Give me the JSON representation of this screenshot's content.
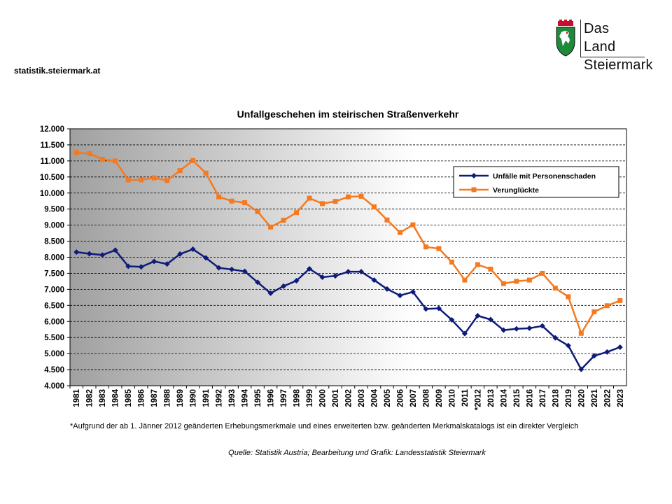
{
  "header": {
    "site": "statistik.steiermark.at",
    "logo_line1": "Das Land",
    "logo_line2": "Steiermark"
  },
  "colors": {
    "series1": "#0d1b7a",
    "series2": "#f47920",
    "plot_left": "#a0a0a0",
    "plot_right": "#ffffff"
  },
  "footnote": "*Aufgrund der ab 1. Jänner 2012 geänderten Erhebungsmerkmale und eines erweiterten bzw. geänderten Merkmalskatalogs ist ein direkter Vergleich",
  "source": "Quelle: Statistik Austria; Bearbeitung und Grafik: Landesstatistik Steiermark",
  "chart_data": {
    "type": "line",
    "title": "Unfallgeschehen im steirischen Straßenverkehr",
    "xlabel": "",
    "ylabel": "",
    "ylim": [
      4000,
      12000
    ],
    "yticks": [
      "4.000",
      "4.500",
      "5.000",
      "5.500",
      "6.000",
      "6.500",
      "7.000",
      "7.500",
      "8.000",
      "8.500",
      "9.000",
      "9.500",
      "10.000",
      "10.500",
      "11.000",
      "11.500",
      "12.000"
    ],
    "grid": "horizontal dashed",
    "legend": "top-right",
    "categories": [
      "1981",
      "1982",
      "1983",
      "1984",
      "1985",
      "1986",
      "1987",
      "1988",
      "1989",
      "1990",
      "1991",
      "1992",
      "1993",
      "1994",
      "1995",
      "1996",
      "1997",
      "1998",
      "1999",
      "2000",
      "2001",
      "2002",
      "2003",
      "2004",
      "2005",
      "2006",
      "2007",
      "2008",
      "2009",
      "2010",
      "2011",
      "*2012",
      "2013",
      "2014",
      "2015",
      "2016",
      "2017",
      "2018",
      "2019",
      "2020",
      "2021",
      "2022",
      "2023"
    ],
    "series": [
      {
        "name": "Unfälle mit Personenschaden",
        "marker": "diamond",
        "values": [
          8160,
          8110,
          8070,
          8220,
          7720,
          7700,
          7870,
          7790,
          8100,
          8250,
          7980,
          7670,
          7620,
          7560,
          7220,
          6880,
          7100,
          7270,
          7640,
          7380,
          7420,
          7550,
          7550,
          7290,
          7010,
          6810,
          6920,
          6390,
          6410,
          6050,
          5620,
          6180,
          6060,
          5730,
          5770,
          5790,
          5860,
          5490,
          5250,
          4510,
          4930,
          5050,
          5200
        ]
      },
      {
        "name": "Verunglückte",
        "marker": "square",
        "values": [
          11260,
          11230,
          11050,
          11000,
          10410,
          10410,
          10470,
          10390,
          10700,
          11010,
          10620,
          9880,
          9750,
          9700,
          9420,
          8940,
          9150,
          9390,
          9840,
          9670,
          9740,
          9880,
          9900,
          9570,
          9160,
          8770,
          9010,
          8320,
          8270,
          7850,
          7290,
          7770,
          7630,
          7180,
          7250,
          7290,
          7500,
          7040,
          6770,
          5630,
          6300,
          6490,
          6650
        ]
      }
    ]
  }
}
